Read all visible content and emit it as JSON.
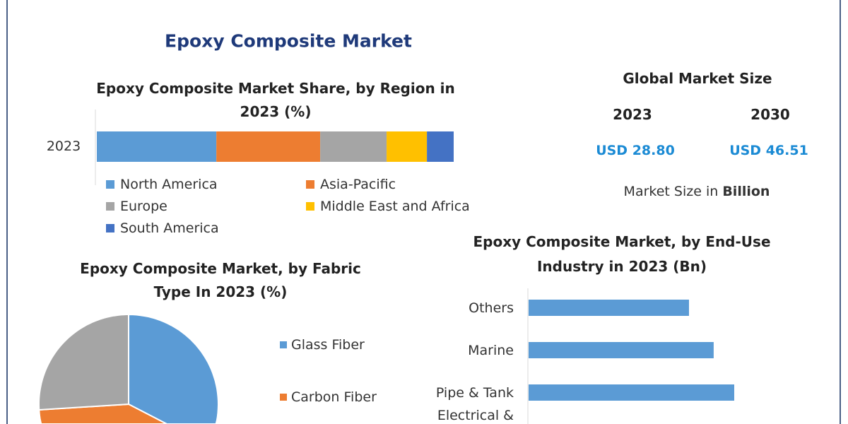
{
  "main_title": "Epoxy Composite Market",
  "global": {
    "title": "Global Market Size",
    "years": [
      "2023",
      "2030"
    ],
    "values": [
      "USD 28.80",
      "USD 46.51"
    ],
    "unit_prefix": "Market Size in ",
    "unit_bold": "Billion",
    "value_color": "#1a8ad4"
  },
  "chart_data": [
    {
      "type": "bar",
      "orientation": "horizontal-stacked",
      "title": [
        "Epoxy Composite Market Share, by Region in",
        "2023 (%)"
      ],
      "categories": [
        "2023"
      ],
      "series": [
        {
          "name": "North America",
          "values": [
            33.5
          ],
          "color": "#5b9bd5"
        },
        {
          "name": "Asia-Pacific",
          "values": [
            29.1
          ],
          "color": "#ed7d31"
        },
        {
          "name": "Europe",
          "values": [
            18.6
          ],
          "color": "#a5a5a5"
        },
        {
          "name": "Middle East and Africa",
          "values": [
            11.3
          ],
          "color": "#ffc000"
        },
        {
          "name": "South America",
          "values": [
            7.5
          ],
          "color": "#4472c4"
        }
      ],
      "legend": "bottom"
    },
    {
      "type": "pie",
      "title": [
        "Epoxy Composite Market, by Fabric",
        "Type In 2023 (%)"
      ],
      "slices": [
        {
          "name": "Glass Fiber",
          "value": 43,
          "color": "#5b9bd5"
        },
        {
          "name": "Carbon Fiber",
          "value": 31,
          "color": "#ed7d31"
        },
        {
          "name": "",
          "value": 26,
          "color": "#a5a5a5"
        }
      ],
      "legend": "right"
    },
    {
      "type": "bar",
      "orientation": "horizontal",
      "title": [
        "Epoxy Composite Market, by End-Use",
        "Industry in 2023 (Bn)"
      ],
      "categories": [
        "Others",
        "Marine",
        "Pipe & Tank",
        "Electrical &"
      ],
      "values": [
        3.9,
        4.5,
        5.0,
        null
      ],
      "color": "#5b9bd5"
    }
  ]
}
